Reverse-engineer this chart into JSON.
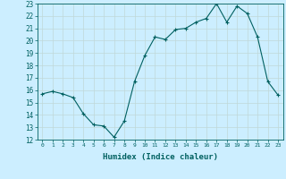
{
  "x": [
    0,
    1,
    2,
    3,
    4,
    5,
    6,
    7,
    8,
    9,
    10,
    11,
    12,
    13,
    14,
    15,
    16,
    17,
    18,
    19,
    20,
    21,
    22,
    23
  ],
  "y": [
    15.7,
    15.9,
    15.7,
    15.4,
    14.1,
    13.2,
    13.1,
    12.2,
    13.5,
    16.7,
    18.8,
    20.3,
    20.1,
    20.9,
    21.0,
    21.5,
    21.8,
    23.0,
    21.5,
    22.8,
    22.2,
    20.3,
    16.7,
    15.6
  ],
  "xlabel": "Humidex (Indice chaleur)",
  "ylim": [
    12,
    23
  ],
  "xlim": [
    -0.5,
    23.5
  ],
  "yticks": [
    12,
    13,
    14,
    15,
    16,
    17,
    18,
    19,
    20,
    21,
    22,
    23
  ],
  "xticks": [
    0,
    1,
    2,
    3,
    4,
    5,
    6,
    7,
    8,
    9,
    10,
    11,
    12,
    13,
    14,
    15,
    16,
    17,
    18,
    19,
    20,
    21,
    22,
    23
  ],
  "line_color": "#006060",
  "marker": "+",
  "bg_color": "#cceeff",
  "grid_color": "#c0d8d8"
}
